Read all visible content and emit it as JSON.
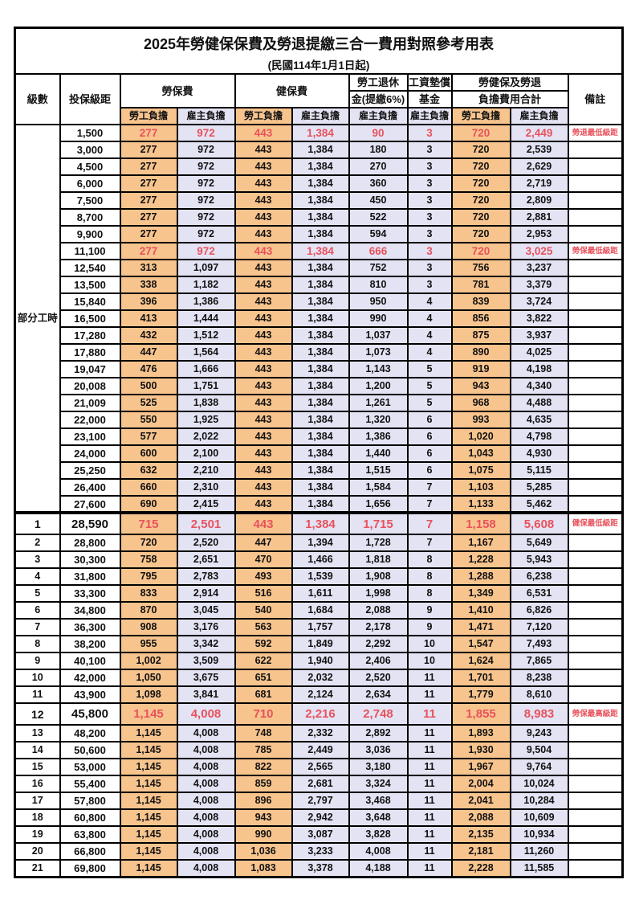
{
  "title": "2025年勞健保保費及勞退提繳三合一費用對照參考用表",
  "subtitle": "(民國114年1月1日起)",
  "header": {
    "level": "級數",
    "bracket": "投保級距",
    "labor_insurance": "勞保費",
    "health_insurance": "健保費",
    "pension_line1": "勞工退休",
    "pension_line2": "金(提繳6%)",
    "wage_fund_line1": "工資墊償",
    "wage_fund_line2": "基金",
    "total_line1": "勞健保及勞退",
    "total_line2": "負擔費用合計",
    "remark": "備註",
    "employee_label": "勞工負擔",
    "employer_label": "雇主負擔"
  },
  "part_time_label": "部分工時",
  "colors": {
    "employee_col_bg": "#f7c48e",
    "employer_col_bg": "#e3e3f4",
    "highlight_text": "#e8525c",
    "border": "#000000"
  },
  "columns_order": [
    "level",
    "bracket",
    "labor_ins_employee",
    "labor_ins_employer",
    "health_ins_employee",
    "health_ins_employer",
    "pension_employer",
    "wage_fund_employer",
    "total_employee",
    "total_employer",
    "remark",
    "flags"
  ],
  "rows": [
    [
      "",
      "1,500",
      "277",
      "972",
      "443",
      "1,384",
      "90",
      "3",
      "720",
      "2,449",
      "勞退最低級距",
      "hl"
    ],
    [
      "",
      "3,000",
      "277",
      "972",
      "443",
      "1,384",
      "180",
      "3",
      "720",
      "2,539",
      "",
      ""
    ],
    [
      "",
      "4,500",
      "277",
      "972",
      "443",
      "1,384",
      "270",
      "3",
      "720",
      "2,629",
      "",
      ""
    ],
    [
      "",
      "6,000",
      "277",
      "972",
      "443",
      "1,384",
      "360",
      "3",
      "720",
      "2,719",
      "",
      ""
    ],
    [
      "",
      "7,500",
      "277",
      "972",
      "443",
      "1,384",
      "450",
      "3",
      "720",
      "2,809",
      "",
      ""
    ],
    [
      "",
      "8,700",
      "277",
      "972",
      "443",
      "1,384",
      "522",
      "3",
      "720",
      "2,881",
      "",
      ""
    ],
    [
      "",
      "9,900",
      "277",
      "972",
      "443",
      "1,384",
      "594",
      "3",
      "720",
      "2,953",
      "",
      ""
    ],
    [
      "",
      "11,100",
      "277",
      "972",
      "443",
      "1,384",
      "666",
      "3",
      "720",
      "3,025",
      "勞保最低級距",
      "hl"
    ],
    [
      "",
      "12,540",
      "313",
      "1,097",
      "443",
      "1,384",
      "752",
      "3",
      "756",
      "3,237",
      "",
      ""
    ],
    [
      "",
      "13,500",
      "338",
      "1,182",
      "443",
      "1,384",
      "810",
      "3",
      "781",
      "3,379",
      "",
      ""
    ],
    [
      "",
      "15,840",
      "396",
      "1,386",
      "443",
      "1,384",
      "950",
      "4",
      "839",
      "3,724",
      "",
      ""
    ],
    [
      "",
      "16,500",
      "413",
      "1,444",
      "443",
      "1,384",
      "990",
      "4",
      "856",
      "3,822",
      "",
      ""
    ],
    [
      "",
      "17,280",
      "432",
      "1,512",
      "443",
      "1,384",
      "1,037",
      "4",
      "875",
      "3,937",
      "",
      ""
    ],
    [
      "",
      "17,880",
      "447",
      "1,564",
      "443",
      "1,384",
      "1,073",
      "4",
      "890",
      "4,025",
      "",
      ""
    ],
    [
      "",
      "19,047",
      "476",
      "1,666",
      "443",
      "1,384",
      "1,143",
      "5",
      "919",
      "4,198",
      "",
      ""
    ],
    [
      "",
      "20,008",
      "500",
      "1,751",
      "443",
      "1,384",
      "1,200",
      "5",
      "943",
      "4,340",
      "",
      ""
    ],
    [
      "",
      "21,009",
      "525",
      "1,838",
      "443",
      "1,384",
      "1,261",
      "5",
      "968",
      "4,488",
      "",
      ""
    ],
    [
      "",
      "22,000",
      "550",
      "1,925",
      "443",
      "1,384",
      "1,320",
      "6",
      "993",
      "4,635",
      "",
      ""
    ],
    [
      "",
      "23,100",
      "577",
      "2,022",
      "443",
      "1,384",
      "1,386",
      "6",
      "1,020",
      "4,798",
      "",
      ""
    ],
    [
      "",
      "24,000",
      "600",
      "2,100",
      "443",
      "1,384",
      "1,440",
      "6",
      "1,043",
      "4,930",
      "",
      ""
    ],
    [
      "",
      "25,250",
      "632",
      "2,210",
      "443",
      "1,384",
      "1,515",
      "6",
      "1,075",
      "5,115",
      "",
      ""
    ],
    [
      "",
      "26,400",
      "660",
      "2,310",
      "443",
      "1,384",
      "1,584",
      "7",
      "1,103",
      "5,285",
      "",
      ""
    ],
    [
      "",
      "27,600",
      "690",
      "2,415",
      "443",
      "1,384",
      "1,656",
      "7",
      "1,133",
      "5,462",
      "",
      ""
    ],
    [
      "1",
      "28,590",
      "715",
      "2,501",
      "443",
      "1,384",
      "1,715",
      "7",
      "1,158",
      "5,608",
      "健保最低級距",
      "hl big section"
    ],
    [
      "2",
      "28,800",
      "720",
      "2,520",
      "447",
      "1,394",
      "1,728",
      "7",
      "1,167",
      "5,649",
      "",
      ""
    ],
    [
      "3",
      "30,300",
      "758",
      "2,651",
      "470",
      "1,466",
      "1,818",
      "8",
      "1,228",
      "5,943",
      "",
      ""
    ],
    [
      "4",
      "31,800",
      "795",
      "2,783",
      "493",
      "1,539",
      "1,908",
      "8",
      "1,288",
      "6,238",
      "",
      ""
    ],
    [
      "5",
      "33,300",
      "833",
      "2,914",
      "516",
      "1,611",
      "1,998",
      "8",
      "1,349",
      "6,531",
      "",
      ""
    ],
    [
      "6",
      "34,800",
      "870",
      "3,045",
      "540",
      "1,684",
      "2,088",
      "9",
      "1,410",
      "6,826",
      "",
      ""
    ],
    [
      "7",
      "36,300",
      "908",
      "3,176",
      "563",
      "1,757",
      "2,178",
      "9",
      "1,471",
      "7,120",
      "",
      ""
    ],
    [
      "8",
      "38,200",
      "955",
      "3,342",
      "592",
      "1,849",
      "2,292",
      "10",
      "1,547",
      "7,493",
      "",
      ""
    ],
    [
      "9",
      "40,100",
      "1,002",
      "3,509",
      "622",
      "1,940",
      "2,406",
      "10",
      "1,624",
      "7,865",
      "",
      ""
    ],
    [
      "10",
      "42,000",
      "1,050",
      "3,675",
      "651",
      "2,032",
      "2,520",
      "11",
      "1,701",
      "8,238",
      "",
      ""
    ],
    [
      "11",
      "43,900",
      "1,098",
      "3,841",
      "681",
      "2,124",
      "2,634",
      "11",
      "1,779",
      "8,610",
      "",
      ""
    ],
    [
      "12",
      "45,800",
      "1,145",
      "4,008",
      "710",
      "2,216",
      "2,748",
      "11",
      "1,855",
      "8,983",
      "勞保最高級距",
      "hl big"
    ],
    [
      "13",
      "48,200",
      "1,145",
      "4,008",
      "748",
      "2,332",
      "2,892",
      "11",
      "1,893",
      "9,243",
      "",
      ""
    ],
    [
      "14",
      "50,600",
      "1,145",
      "4,008",
      "785",
      "2,449",
      "3,036",
      "11",
      "1,930",
      "9,504",
      "",
      ""
    ],
    [
      "15",
      "53,000",
      "1,145",
      "4,008",
      "822",
      "2,565",
      "3,180",
      "11",
      "1,967",
      "9,764",
      "",
      ""
    ],
    [
      "16",
      "55,400",
      "1,145",
      "4,008",
      "859",
      "2,681",
      "3,324",
      "11",
      "2,004",
      "10,024",
      "",
      ""
    ],
    [
      "17",
      "57,800",
      "1,145",
      "4,008",
      "896",
      "2,797",
      "3,468",
      "11",
      "2,041",
      "10,284",
      "",
      ""
    ],
    [
      "18",
      "60,800",
      "1,145",
      "4,008",
      "943",
      "2,942",
      "3,648",
      "11",
      "2,088",
      "10,609",
      "",
      ""
    ],
    [
      "19",
      "63,800",
      "1,145",
      "4,008",
      "990",
      "3,087",
      "3,828",
      "11",
      "2,135",
      "10,934",
      "",
      ""
    ],
    [
      "20",
      "66,800",
      "1,145",
      "4,008",
      "1,036",
      "3,233",
      "4,008",
      "11",
      "2,181",
      "11,260",
      "",
      ""
    ],
    [
      "21",
      "69,800",
      "1,145",
      "4,008",
      "1,083",
      "3,378",
      "4,188",
      "11",
      "2,228",
      "11,585",
      "",
      ""
    ]
  ]
}
